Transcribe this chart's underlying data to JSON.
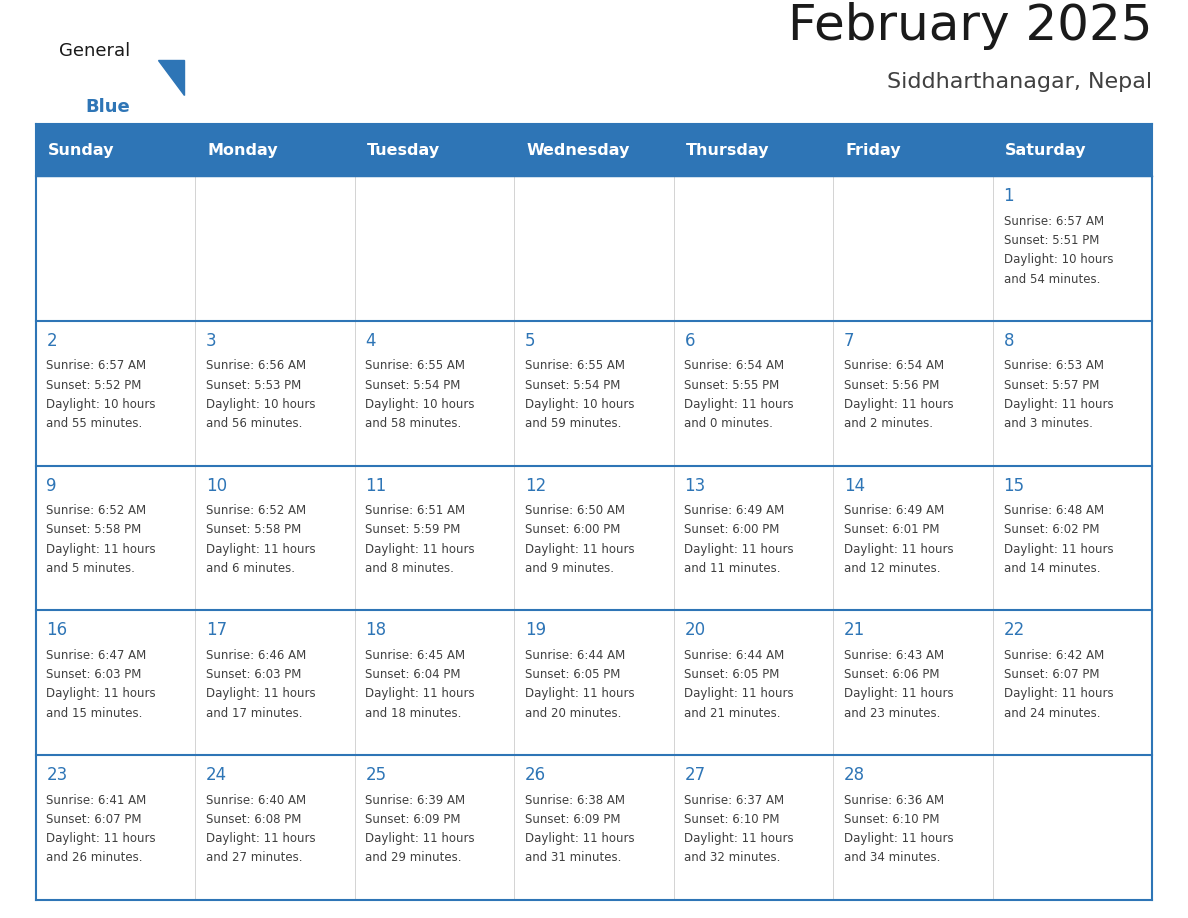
{
  "title": "February 2025",
  "subtitle": "Siddharthanagar, Nepal",
  "days_of_week": [
    "Sunday",
    "Monday",
    "Tuesday",
    "Wednesday",
    "Thursday",
    "Friday",
    "Saturday"
  ],
  "header_bg": "#2E75B6",
  "header_text_color": "#FFFFFF",
  "cell_border_color": "#2E75B6",
  "day_number_color": "#2E75B6",
  "info_text_color": "#404040",
  "background_color": "#FFFFFF",
  "title_color": "#1a1a1a",
  "subtitle_color": "#404040",
  "general_color": "#1a1a1a",
  "blue_color": "#2E75B6",
  "calendar_data": [
    [
      null,
      null,
      null,
      null,
      null,
      null,
      {
        "day": "1",
        "sunrise": "6:57 AM",
        "sunset": "5:51 PM",
        "daylight_h": "10 hours",
        "daylight_m": "and 54 minutes."
      }
    ],
    [
      {
        "day": "2",
        "sunrise": "6:57 AM",
        "sunset": "5:52 PM",
        "daylight_h": "10 hours",
        "daylight_m": "and 55 minutes."
      },
      {
        "day": "3",
        "sunrise": "6:56 AM",
        "sunset": "5:53 PM",
        "daylight_h": "10 hours",
        "daylight_m": "and 56 minutes."
      },
      {
        "day": "4",
        "sunrise": "6:55 AM",
        "sunset": "5:54 PM",
        "daylight_h": "10 hours",
        "daylight_m": "and 58 minutes."
      },
      {
        "day": "5",
        "sunrise": "6:55 AM",
        "sunset": "5:54 PM",
        "daylight_h": "10 hours",
        "daylight_m": "and 59 minutes."
      },
      {
        "day": "6",
        "sunrise": "6:54 AM",
        "sunset": "5:55 PM",
        "daylight_h": "11 hours",
        "daylight_m": "and 0 minutes."
      },
      {
        "day": "7",
        "sunrise": "6:54 AM",
        "sunset": "5:56 PM",
        "daylight_h": "11 hours",
        "daylight_m": "and 2 minutes."
      },
      {
        "day": "8",
        "sunrise": "6:53 AM",
        "sunset": "5:57 PM",
        "daylight_h": "11 hours",
        "daylight_m": "and 3 minutes."
      }
    ],
    [
      {
        "day": "9",
        "sunrise": "6:52 AM",
        "sunset": "5:58 PM",
        "daylight_h": "11 hours",
        "daylight_m": "and 5 minutes."
      },
      {
        "day": "10",
        "sunrise": "6:52 AM",
        "sunset": "5:58 PM",
        "daylight_h": "11 hours",
        "daylight_m": "and 6 minutes."
      },
      {
        "day": "11",
        "sunrise": "6:51 AM",
        "sunset": "5:59 PM",
        "daylight_h": "11 hours",
        "daylight_m": "and 8 minutes."
      },
      {
        "day": "12",
        "sunrise": "6:50 AM",
        "sunset": "6:00 PM",
        "daylight_h": "11 hours",
        "daylight_m": "and 9 minutes."
      },
      {
        "day": "13",
        "sunrise": "6:49 AM",
        "sunset": "6:00 PM",
        "daylight_h": "11 hours",
        "daylight_m": "and 11 minutes."
      },
      {
        "day": "14",
        "sunrise": "6:49 AM",
        "sunset": "6:01 PM",
        "daylight_h": "11 hours",
        "daylight_m": "and 12 minutes."
      },
      {
        "day": "15",
        "sunrise": "6:48 AM",
        "sunset": "6:02 PM",
        "daylight_h": "11 hours",
        "daylight_m": "and 14 minutes."
      }
    ],
    [
      {
        "day": "16",
        "sunrise": "6:47 AM",
        "sunset": "6:03 PM",
        "daylight_h": "11 hours",
        "daylight_m": "and 15 minutes."
      },
      {
        "day": "17",
        "sunrise": "6:46 AM",
        "sunset": "6:03 PM",
        "daylight_h": "11 hours",
        "daylight_m": "and 17 minutes."
      },
      {
        "day": "18",
        "sunrise": "6:45 AM",
        "sunset": "6:04 PM",
        "daylight_h": "11 hours",
        "daylight_m": "and 18 minutes."
      },
      {
        "day": "19",
        "sunrise": "6:44 AM",
        "sunset": "6:05 PM",
        "daylight_h": "11 hours",
        "daylight_m": "and 20 minutes."
      },
      {
        "day": "20",
        "sunrise": "6:44 AM",
        "sunset": "6:05 PM",
        "daylight_h": "11 hours",
        "daylight_m": "and 21 minutes."
      },
      {
        "day": "21",
        "sunrise": "6:43 AM",
        "sunset": "6:06 PM",
        "daylight_h": "11 hours",
        "daylight_m": "and 23 minutes."
      },
      {
        "day": "22",
        "sunrise": "6:42 AM",
        "sunset": "6:07 PM",
        "daylight_h": "11 hours",
        "daylight_m": "and 24 minutes."
      }
    ],
    [
      {
        "day": "23",
        "sunrise": "6:41 AM",
        "sunset": "6:07 PM",
        "daylight_h": "11 hours",
        "daylight_m": "and 26 minutes."
      },
      {
        "day": "24",
        "sunrise": "6:40 AM",
        "sunset": "6:08 PM",
        "daylight_h": "11 hours",
        "daylight_m": "and 27 minutes."
      },
      {
        "day": "25",
        "sunrise": "6:39 AM",
        "sunset": "6:09 PM",
        "daylight_h": "11 hours",
        "daylight_m": "and 29 minutes."
      },
      {
        "day": "26",
        "sunrise": "6:38 AM",
        "sunset": "6:09 PM",
        "daylight_h": "11 hours",
        "daylight_m": "and 31 minutes."
      },
      {
        "day": "27",
        "sunrise": "6:37 AM",
        "sunset": "6:10 PM",
        "daylight_h": "11 hours",
        "daylight_m": "and 32 minutes."
      },
      {
        "day": "28",
        "sunrise": "6:36 AM",
        "sunset": "6:10 PM",
        "daylight_h": "11 hours",
        "daylight_m": "and 34 minutes."
      },
      null
    ]
  ]
}
